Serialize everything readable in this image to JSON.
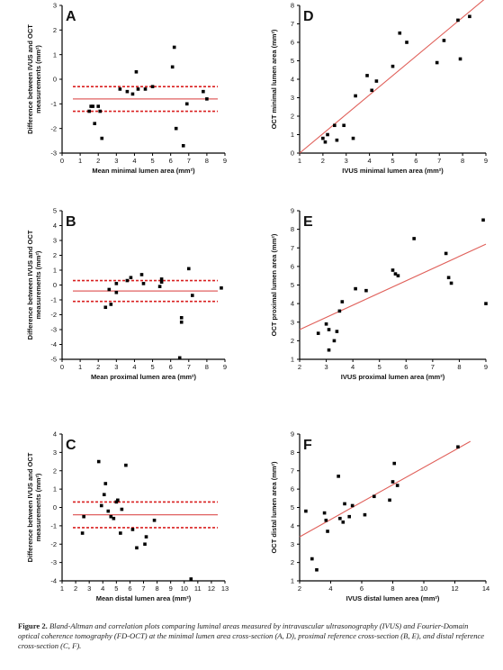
{
  "figure": {
    "caption_label": "Figure 2.",
    "caption_text": "Bland-Altman and correlation plots comparing luminal areas measured by intravascular ultrasonography (IVUS) and Fourier-Domain optical coherence tomography (FD-OCT) at the minimal lumen area cross-section (A, D), proximal reference cross-section (B, E), and distal reference cross-section (C, F)."
  },
  "chart_data": [
    {
      "panel": "A",
      "type": "scatter",
      "xlabel": "Mean minimal lumen area (mm²)",
      "ylabel": "Difference between IVUS and OCT measurements (mm²)",
      "xlim": [
        0,
        9
      ],
      "ylim": [
        -3,
        3
      ],
      "xticks": [
        0,
        1,
        2,
        3,
        4,
        5,
        6,
        7,
        8,
        9
      ],
      "yticks": [
        -3,
        -2,
        -1,
        0,
        1,
        2,
        3
      ],
      "mean_line": -0.8,
      "limit_lines": [
        -0.3,
        -1.3
      ],
      "points": [
        [
          1.5,
          -1.3
        ],
        [
          1.6,
          -1.1
        ],
        [
          1.7,
          -1.1
        ],
        [
          1.8,
          -1.8
        ],
        [
          2.0,
          -1.1
        ],
        [
          2.1,
          -1.3
        ],
        [
          2.2,
          -2.4
        ],
        [
          3.2,
          -0.4
        ],
        [
          3.6,
          -0.5
        ],
        [
          3.9,
          -0.6
        ],
        [
          4.1,
          0.3
        ],
        [
          4.2,
          -0.4
        ],
        [
          4.6,
          -0.4
        ],
        [
          5.0,
          -0.3
        ],
        [
          6.1,
          0.5
        ],
        [
          6.2,
          1.3
        ],
        [
          6.3,
          -2.0
        ],
        [
          6.7,
          -2.7
        ],
        [
          6.9,
          -1.0
        ],
        [
          7.8,
          -0.5
        ],
        [
          8.0,
          -0.8
        ]
      ]
    },
    {
      "panel": "D",
      "type": "scatter",
      "xlabel": "IVUS minimal lumen area (mm²)",
      "ylabel": "OCT minimal lumen area (mm²)",
      "xlim": [
        1,
        9
      ],
      "ylim": [
        0,
        8
      ],
      "xticks": [
        1,
        2,
        3,
        4,
        5,
        6,
        7,
        8,
        9
      ],
      "yticks": [
        0,
        1,
        2,
        3,
        4,
        5,
        6,
        7,
        8
      ],
      "regression": [
        [
          1,
          0.0
        ],
        [
          9,
          8.4
        ]
      ],
      "points": [
        [
          2.0,
          0.8
        ],
        [
          2.1,
          0.6
        ],
        [
          2.2,
          1.0
        ],
        [
          2.5,
          1.5
        ],
        [
          2.6,
          0.7
        ],
        [
          2.9,
          1.5
        ],
        [
          3.3,
          0.8
        ],
        [
          3.4,
          3.1
        ],
        [
          3.9,
          4.2
        ],
        [
          4.1,
          3.4
        ],
        [
          4.3,
          3.9
        ],
        [
          5.0,
          4.7
        ],
        [
          5.3,
          6.5
        ],
        [
          5.6,
          6.0
        ],
        [
          6.9,
          4.9
        ],
        [
          7.2,
          6.1
        ],
        [
          7.8,
          7.2
        ],
        [
          7.9,
          5.1
        ],
        [
          8.3,
          7.4
        ]
      ]
    },
    {
      "panel": "B",
      "type": "scatter",
      "xlabel": "Mean proximal lumen area (mm²)",
      "ylabel": "Difference between IVUS and OCT measurements (mm²)",
      "xlim": [
        0,
        9
      ],
      "ylim": [
        -5,
        5
      ],
      "xticks": [
        0,
        1,
        2,
        3,
        4,
        5,
        6,
        7,
        8,
        9
      ],
      "yticks": [
        -5,
        -4,
        -3,
        -2,
        -1,
        0,
        1,
        2,
        3,
        4,
        5
      ],
      "mean_line": -0.4,
      "limit_lines": [
        0.3,
        -1.1
      ],
      "points": [
        [
          2.4,
          -1.5
        ],
        [
          2.6,
          -0.3
        ],
        [
          2.7,
          -1.3
        ],
        [
          3.0,
          -0.5
        ],
        [
          3.0,
          0.1
        ],
        [
          3.6,
          0.3
        ],
        [
          3.8,
          0.5
        ],
        [
          4.4,
          0.7
        ],
        [
          4.5,
          0.1
        ],
        [
          5.4,
          -0.1
        ],
        [
          5.5,
          0.2
        ],
        [
          5.5,
          0.4
        ],
        [
          6.5,
          -4.9
        ],
        [
          6.6,
          -2.2
        ],
        [
          6.6,
          -2.5
        ],
        [
          7.0,
          1.1
        ],
        [
          7.2,
          -0.7
        ],
        [
          8.8,
          -0.2
        ]
      ]
    },
    {
      "panel": "E",
      "type": "scatter",
      "xlabel": "IVUS proximal lumen area (mm²)",
      "ylabel": "OCT proximal lumen area (mm²)",
      "xlim": [
        2,
        9
      ],
      "ylim": [
        1,
        9
      ],
      "xticks": [
        2,
        3,
        4,
        5,
        6,
        7,
        8,
        9
      ],
      "yticks": [
        1,
        2,
        3,
        4,
        5,
        6,
        7,
        8,
        9
      ],
      "regression": [
        [
          2,
          2.6
        ],
        [
          9,
          7.2
        ]
      ],
      "points": [
        [
          2.7,
          2.4
        ],
        [
          3.0,
          2.9
        ],
        [
          3.1,
          1.5
        ],
        [
          3.1,
          2.6
        ],
        [
          3.3,
          2.0
        ],
        [
          3.4,
          2.5
        ],
        [
          3.5,
          3.6
        ],
        [
          3.6,
          4.1
        ],
        [
          4.1,
          4.8
        ],
        [
          4.5,
          4.7
        ],
        [
          5.5,
          5.8
        ],
        [
          5.6,
          5.6
        ],
        [
          5.7,
          5.5
        ],
        [
          6.3,
          7.5
        ],
        [
          7.5,
          6.7
        ],
        [
          7.6,
          5.4
        ],
        [
          7.7,
          5.1
        ],
        [
          8.9,
          8.5
        ],
        [
          9.0,
          4.0
        ]
      ]
    },
    {
      "panel": "C",
      "type": "scatter",
      "xlabel": "Mean distal lumen area (mm²)",
      "ylabel": "Difference between IVUS and OCT measurements (mm²)",
      "xlim": [
        1,
        13
      ],
      "ylim": [
        -4,
        4
      ],
      "xticks": [
        1,
        2,
        3,
        4,
        5,
        6,
        7,
        8,
        9,
        10,
        11,
        12,
        13
      ],
      "yticks": [
        -4,
        -3,
        -2,
        -1,
        0,
        1,
        2,
        3,
        4
      ],
      "mean_line": -0.4,
      "limit_lines": [
        0.3,
        -1.1
      ],
      "points": [
        [
          2.5,
          -1.4
        ],
        [
          2.6,
          -0.5
        ],
        [
          3.7,
          2.5
        ],
        [
          3.9,
          0.1
        ],
        [
          4.2,
          1.3
        ],
        [
          4.1,
          0.7
        ],
        [
          4.4,
          -0.2
        ],
        [
          4.6,
          -0.5
        ],
        [
          4.8,
          -0.6
        ],
        [
          5.0,
          0.3
        ],
        [
          5.1,
          0.4
        ],
        [
          5.3,
          -1.4
        ],
        [
          5.4,
          -0.1
        ],
        [
          5.7,
          2.3
        ],
        [
          6.2,
          -1.2
        ],
        [
          6.5,
          -2.2
        ],
        [
          7.1,
          -2.0
        ],
        [
          7.2,
          -1.6
        ],
        [
          7.8,
          -0.7
        ],
        [
          10.5,
          -3.9
        ]
      ]
    },
    {
      "panel": "F",
      "type": "scatter",
      "xlabel": "IVUS distal lumen area (mm²)",
      "ylabel": "OCT distal lumen area (mm²)",
      "xlim": [
        2,
        14
      ],
      "ylim": [
        1,
        9
      ],
      "xticks": [
        2,
        4,
        6,
        8,
        10,
        12,
        14
      ],
      "yticks": [
        1,
        2,
        3,
        4,
        5,
        6,
        7,
        8,
        9
      ],
      "regression": [
        [
          2,
          3.4
        ],
        [
          13,
          8.6
        ]
      ],
      "points": [
        [
          2.4,
          4.8
        ],
        [
          2.8,
          2.2
        ],
        [
          3.1,
          1.6
        ],
        [
          3.6,
          4.7
        ],
        [
          3.7,
          4.3
        ],
        [
          3.8,
          3.7
        ],
        [
          4.5,
          6.7
        ],
        [
          4.6,
          4.4
        ],
        [
          4.8,
          4.2
        ],
        [
          4.9,
          5.2
        ],
        [
          5.2,
          4.5
        ],
        [
          5.4,
          5.1
        ],
        [
          6.2,
          4.6
        ],
        [
          6.8,
          5.6
        ],
        [
          7.8,
          5.4
        ],
        [
          8.0,
          6.4
        ],
        [
          8.1,
          7.4
        ],
        [
          8.3,
          6.2
        ],
        [
          12.2,
          8.3
        ]
      ]
    }
  ],
  "colors": {
    "regression": "#e0605a",
    "mean": "#e06060",
    "limits": "#d92020",
    "points": "#000000",
    "axis": "#000000"
  }
}
